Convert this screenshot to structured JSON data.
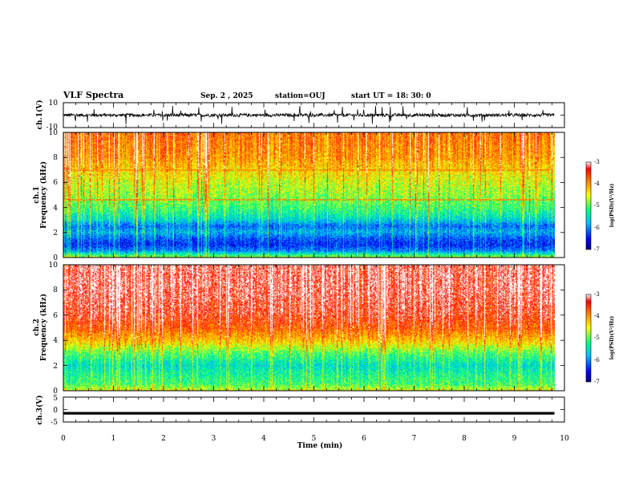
{
  "header": {
    "title": "VLF Spectra",
    "date": "Sep. 2  , 2025",
    "station": "station=OUJ",
    "start_ut": "start UT =   18: 30: 0"
  },
  "chart_data": [
    {
      "type": "line",
      "panel": "ch1-waveform",
      "ylabel": "ch.1(V)",
      "ylim": [
        -10,
        10
      ],
      "yticks": [
        "10",
        "-10"
      ],
      "description_series": "noisy waveform centred near 0 V with occasional spikes",
      "x_range_min": [
        0,
        9.8
      ]
    },
    {
      "type": "heatmap",
      "panel": "ch1-spectrogram",
      "ylabel": [
        "ch.1",
        "Frequency (kHz)"
      ],
      "ylim_khz": [
        0,
        10
      ],
      "yticks": [
        "0",
        "2",
        "4",
        "6",
        "8",
        "10"
      ],
      "x_range_min": [
        0,
        9.8
      ],
      "colorbar": {
        "label": "log(PSD)(V²/Hz)",
        "range": [
          -7,
          -3
        ],
        "ticks": [
          "-3",
          "-4",
          "-5",
          "-6",
          "-7"
        ]
      },
      "profile_khz_to_log_psd": [
        [
          0,
          -4.8
        ],
        [
          0.5,
          -6.0
        ],
        [
          1.0,
          -6.4
        ],
        [
          1.5,
          -6.2
        ],
        [
          2.0,
          -5.8
        ],
        [
          2.5,
          -6.1
        ],
        [
          3.0,
          -5.6
        ],
        [
          3.5,
          -5.3
        ],
        [
          4.0,
          -5.1
        ],
        [
          5.0,
          -4.8
        ],
        [
          6.0,
          -4.6
        ],
        [
          7.0,
          -4.3
        ],
        [
          8.0,
          -4.0
        ],
        [
          9.0,
          -3.9
        ],
        [
          10.0,
          -3.8
        ]
      ],
      "tones_khz": [
        4.6,
        7.0
      ]
    },
    {
      "type": "heatmap",
      "panel": "ch2-spectrogram",
      "ylabel": [
        "ch.2",
        "Frequency (kHz)"
      ],
      "ylim_khz": [
        0,
        10
      ],
      "yticks": [
        "0",
        "2",
        "4",
        "6",
        "8",
        "10"
      ],
      "x_range_min": [
        0,
        9.8
      ],
      "colorbar": {
        "label": "log(PSD)(V²/Hz)",
        "range": [
          -7,
          -3
        ],
        "ticks": [
          "-3",
          "-4",
          "-5",
          "-6",
          "-7"
        ]
      },
      "profile_khz_to_log_psd": [
        [
          0,
          -4.6
        ],
        [
          0.5,
          -5.1
        ],
        [
          1.0,
          -5.2
        ],
        [
          2.0,
          -5.5
        ],
        [
          3.0,
          -5.0
        ],
        [
          3.5,
          -4.6
        ],
        [
          4.0,
          -4.2
        ],
        [
          5.0,
          -3.7
        ],
        [
          6.0,
          -3.4
        ],
        [
          7.0,
          -3.3
        ],
        [
          8.0,
          -3.2
        ],
        [
          9.0,
          -3.2
        ],
        [
          10.0,
          -3.2
        ]
      ],
      "tones_khz": [
        4.9
      ]
    },
    {
      "type": "line",
      "panel": "ch3-waveform",
      "ylabel": "ch.3(V)",
      "ylim": [
        -5,
        5
      ],
      "yticks": [
        "5",
        "0",
        "-5"
      ],
      "constant_value": -1.5,
      "x_range_min": [
        0,
        9.8
      ]
    }
  ],
  "xaxis": {
    "label": "Time (min)",
    "range": [
      0,
      10
    ],
    "ticks": [
      "0",
      "1",
      "2",
      "3",
      "4",
      "5",
      "6",
      "7",
      "8",
      "9",
      "10"
    ]
  },
  "colors": {
    "axis": "#000000",
    "colormap": [
      "#000080",
      "#0000ff",
      "#00c0ff",
      "#00ff80",
      "#ffff00",
      "#ff8000",
      "#ff0000",
      "#ffffff"
    ]
  }
}
